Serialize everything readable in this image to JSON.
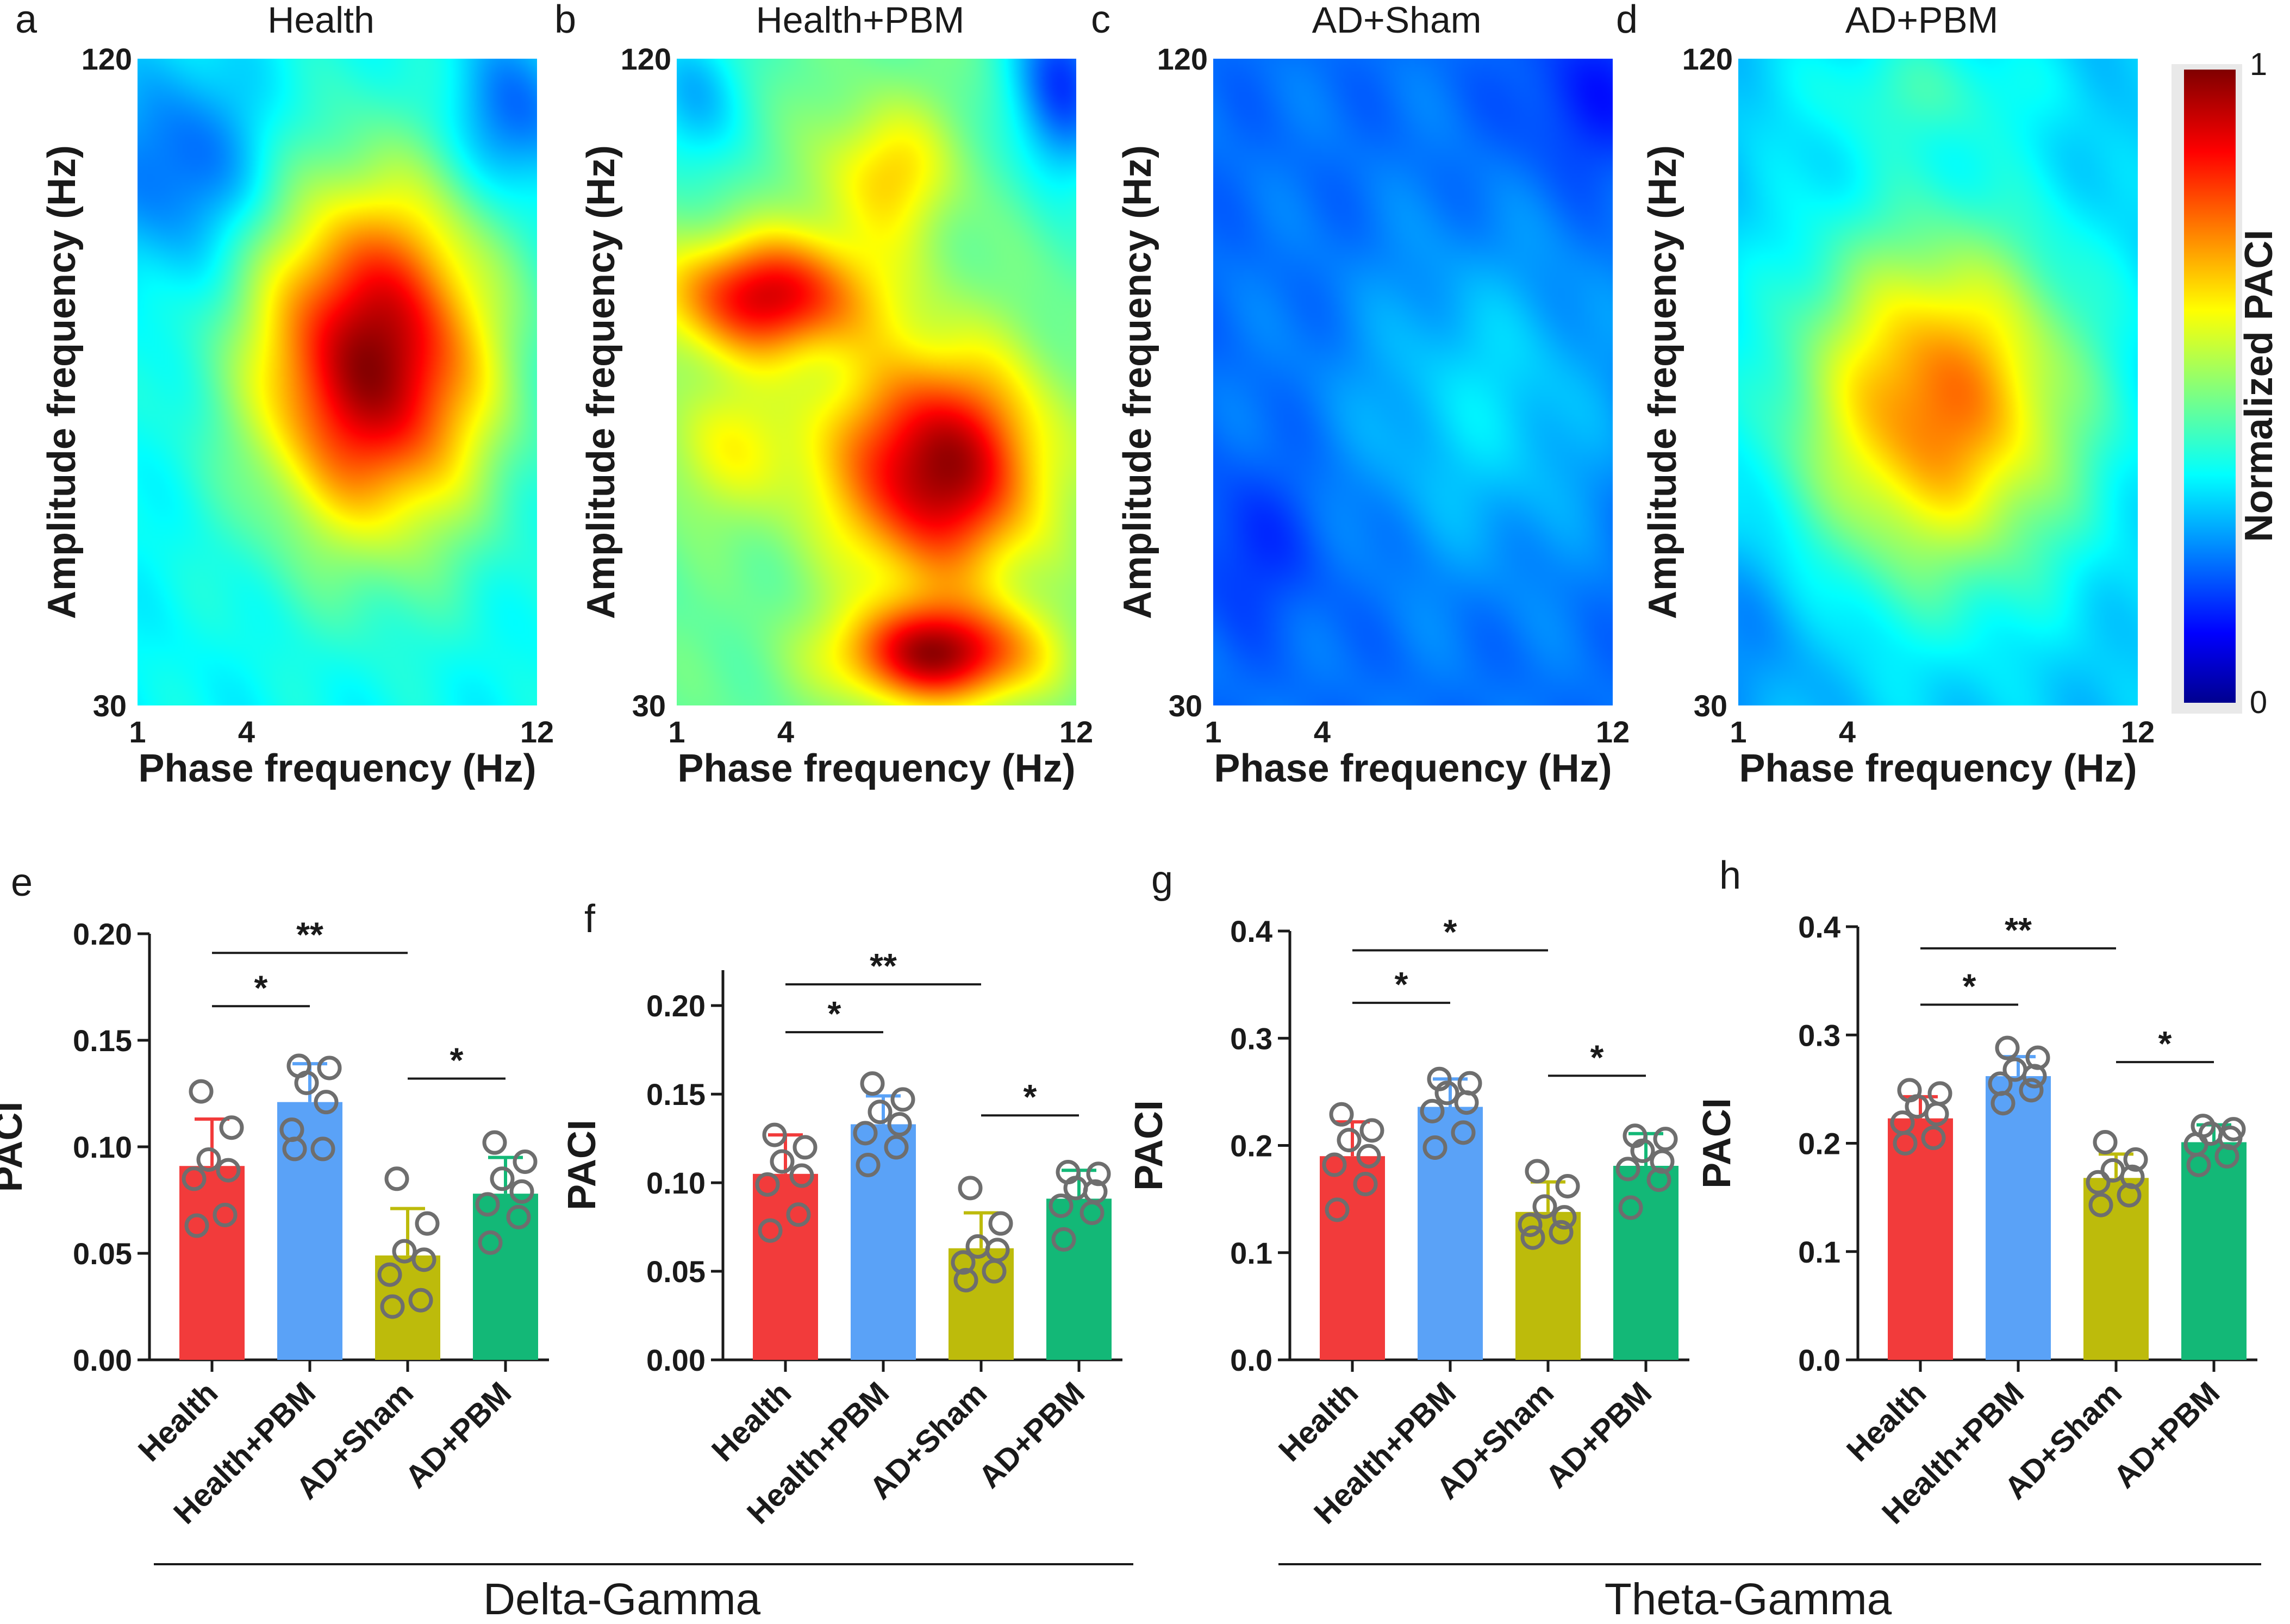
{
  "colorbar": {
    "label": "Normalized PACI",
    "max_label": "1",
    "min_label": "0"
  },
  "heatmaps": [
    {
      "letter": "a",
      "title": "Health",
      "x_ticks": [
        "1",
        "4",
        "12"
      ],
      "y_ticks": [
        "120",
        "30"
      ],
      "xlabel": "Phase frequency (Hz)",
      "ylabel": "Amplitude frequency (Hz)",
      "base": 0.36,
      "blobs": [
        {
          "fx": 7.5,
          "fy": 78,
          "amp": 0.62,
          "sx": 2.3,
          "sy": 17
        },
        {
          "fx": 2.2,
          "fy": 105,
          "amp": -0.16,
          "sx": 1.7,
          "sy": 10
        },
        {
          "fx": 11.4,
          "fy": 112,
          "amp": -0.16,
          "sx": 1.2,
          "sy": 8
        }
      ]
    },
    {
      "letter": "b",
      "title": "Health+PBM",
      "x_ticks": [
        "1",
        "4",
        "12"
      ],
      "y_ticks": [
        "120",
        "30"
      ],
      "xlabel": "Phase frequency (Hz)",
      "ylabel": "Amplitude frequency (Hz)",
      "base": 0.46,
      "blobs": [
        {
          "fx": 8.2,
          "fy": 63,
          "amp": 0.52,
          "sx": 2.0,
          "sy": 11
        },
        {
          "fx": 3.5,
          "fy": 87,
          "amp": 0.44,
          "sx": 2.0,
          "sy": 6
        },
        {
          "fx": 8.2,
          "fy": 37,
          "amp": 0.48,
          "sx": 1.9,
          "sy": 5
        },
        {
          "fx": 6.8,
          "fy": 104,
          "amp": 0.2,
          "sx": 1.3,
          "sy": 7
        },
        {
          "fx": 2.5,
          "fy": 66,
          "amp": 0.14,
          "sx": 1.6,
          "sy": 7
        },
        {
          "fx": 11.6,
          "fy": 117,
          "amp": -0.3,
          "sx": 1.0,
          "sy": 10
        },
        {
          "fx": 1.4,
          "fy": 115,
          "amp": -0.18,
          "sx": 1.0,
          "sy": 8
        }
      ]
    },
    {
      "letter": "c",
      "title": "AD+Sham",
      "x_ticks": [
        "1",
        "4",
        "12"
      ],
      "y_ticks": [
        "120",
        "30"
      ],
      "xlabel": "Phase frequency (Hz)",
      "ylabel": "Amplitude frequency (Hz)",
      "base": 0.22,
      "blobs": [
        {
          "fx": 8.5,
          "fy": 72,
          "amp": 0.11,
          "sx": 2.5,
          "sy": 15
        },
        {
          "fx": 11.5,
          "fy": 115,
          "amp": -0.08,
          "sx": 1.5,
          "sy": 8
        },
        {
          "fx": 2.0,
          "fy": 52,
          "amp": -0.06,
          "sx": 1.5,
          "sy": 8
        }
      ]
    },
    {
      "letter": "d",
      "title": "AD+PBM",
      "x_ticks": [
        "1",
        "4",
        "12"
      ],
      "y_ticks": [
        "120",
        "30"
      ],
      "xlabel": "Phase frequency (Hz)",
      "ylabel": "Amplitude frequency (Hz)",
      "base": 0.3,
      "blobs": [
        {
          "fx": 6.5,
          "fy": 72,
          "amp": 0.46,
          "sx": 2.8,
          "sy": 17
        },
        {
          "fx": 6.0,
          "fy": 116,
          "amp": 0.1,
          "sx": 2.5,
          "sy": 6
        },
        {
          "fx": 1.4,
          "fy": 40,
          "amp": -0.06,
          "sx": 1.5,
          "sy": 10
        }
      ]
    }
  ],
  "bar_panels": [
    {
      "letter": "e",
      "ylabel": "PACI",
      "y_ticks": [
        "0.00",
        "0.05",
        "0.10",
        "0.15",
        "0.20"
      ],
      "ymin": 0,
      "ymax": 0.2,
      "categories": [
        "Health",
        "Health+PBM",
        "AD+Sham",
        "AD+PBM"
      ],
      "means": [
        0.091,
        0.121,
        0.049,
        0.078
      ],
      "sd": [
        0.022,
        0.018,
        0.022,
        0.017
      ],
      "points": [
        [
          0.063,
          0.068,
          0.085,
          0.089,
          0.094,
          0.109,
          0.126
        ],
        [
          0.099,
          0.099,
          0.108,
          0.121,
          0.13,
          0.137,
          0.138
        ],
        [
          0.025,
          0.028,
          0.04,
          0.047,
          0.051,
          0.064,
          0.085
        ],
        [
          0.055,
          0.067,
          0.073,
          0.079,
          0.085,
          0.093,
          0.102
        ]
      ],
      "sig": [
        {
          "from": 0,
          "to": 1,
          "label": "*",
          "y": 0.166
        },
        {
          "from": 0,
          "to": 2,
          "label": "**",
          "y": 0.191
        },
        {
          "from": 2,
          "to": 3,
          "label": "*",
          "y": 0.132
        }
      ]
    },
    {
      "letter": "f",
      "ylabel": "PACI",
      "y_ticks": [
        "0.00",
        "0.05",
        "0.10",
        "0.15",
        "0.20"
      ],
      "ymin": 0,
      "ymax": 0.22,
      "categories": [
        "Health",
        "Health+PBM",
        "AD+Sham",
        "AD+PBM"
      ],
      "means": [
        0.105,
        0.133,
        0.063,
        0.091
      ],
      "sd": [
        0.022,
        0.016,
        0.02,
        0.016
      ],
      "points": [
        [
          0.073,
          0.082,
          0.099,
          0.104,
          0.112,
          0.12,
          0.127
        ],
        [
          0.11,
          0.12,
          0.128,
          0.133,
          0.14,
          0.147,
          0.156
        ],
        [
          0.045,
          0.05,
          0.055,
          0.062,
          0.064,
          0.077,
          0.097
        ],
        [
          0.068,
          0.083,
          0.087,
          0.095,
          0.097,
          0.105,
          0.106
        ]
      ],
      "sig": [
        {
          "from": 0,
          "to": 1,
          "label": "*",
          "y": 0.185
        },
        {
          "from": 0,
          "to": 2,
          "label": "**",
          "y": 0.212
        },
        {
          "from": 2,
          "to": 3,
          "label": "*",
          "y": 0.138
        }
      ]
    },
    {
      "letter": "g",
      "ylabel": "PACI",
      "y_ticks": [
        "0.0",
        "0.1",
        "0.2",
        "0.3",
        "0.4"
      ],
      "ymin": 0,
      "ymax": 0.4,
      "categories": [
        "Health",
        "Health+PBM",
        "AD+Sham",
        "AD+PBM"
      ],
      "means": [
        0.19,
        0.236,
        0.138,
        0.181
      ],
      "sd": [
        0.032,
        0.026,
        0.028,
        0.03
      ],
      "points": [
        [
          0.14,
          0.164,
          0.182,
          0.19,
          0.205,
          0.214,
          0.229
        ],
        [
          0.198,
          0.212,
          0.232,
          0.24,
          0.249,
          0.258,
          0.262
        ],
        [
          0.114,
          0.119,
          0.126,
          0.133,
          0.143,
          0.162,
          0.176
        ],
        [
          0.142,
          0.168,
          0.178,
          0.185,
          0.195,
          0.206,
          0.209
        ]
      ],
      "sig": [
        {
          "from": 0,
          "to": 1,
          "label": "*",
          "y": 0.333
        },
        {
          "from": 0,
          "to": 2,
          "label": "*",
          "y": 0.382
        },
        {
          "from": 2,
          "to": 3,
          "label": "*",
          "y": 0.265
        }
      ]
    },
    {
      "letter": "h",
      "ylabel": "PACI",
      "y_ticks": [
        "0.0",
        "0.1",
        "0.2",
        "0.3",
        "0.4"
      ],
      "ymin": 0,
      "ymax": 0.4,
      "categories": [
        "Health",
        "Health+PBM",
        "AD+Sham",
        "AD+PBM"
      ],
      "means": [
        0.223,
        0.262,
        0.168,
        0.201
      ],
      "sd": [
        0.02,
        0.018,
        0.022,
        0.016
      ],
      "points": [
        [
          0.2,
          0.205,
          0.219,
          0.227,
          0.234,
          0.246,
          0.249
        ],
        [
          0.237,
          0.249,
          0.255,
          0.262,
          0.268,
          0.279,
          0.288
        ],
        [
          0.143,
          0.152,
          0.164,
          0.169,
          0.175,
          0.185,
          0.201
        ],
        [
          0.18,
          0.188,
          0.199,
          0.205,
          0.209,
          0.213,
          0.216
        ]
      ],
      "sig": [
        {
          "from": 0,
          "to": 1,
          "label": "*",
          "y": 0.328
        },
        {
          "from": 0,
          "to": 2,
          "label": "**",
          "y": 0.38
        },
        {
          "from": 2,
          "to": 3,
          "label": "*",
          "y": 0.275
        }
      ]
    }
  ],
  "bar_colors": [
    "#f23b3b",
    "#5aa2f7",
    "#bdbb0b",
    "#13b877"
  ],
  "group_labels": [
    {
      "label": "Delta-Gamma",
      "panels": [
        0,
        1
      ]
    },
    {
      "label": "Theta-Gamma",
      "panels": [
        2,
        3
      ]
    }
  ]
}
